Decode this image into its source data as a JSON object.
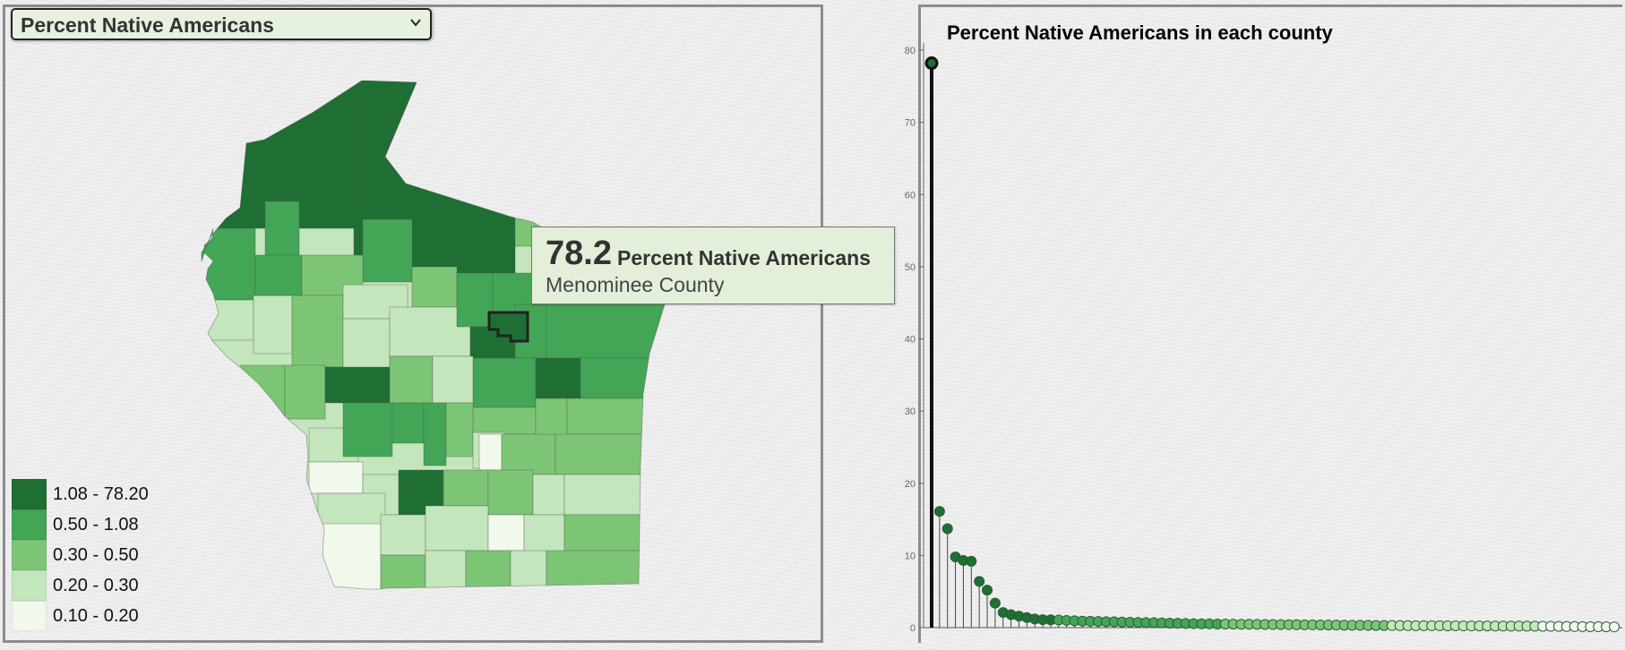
{
  "selector": {
    "selected": "Percent Native Americans"
  },
  "map": {
    "highlighted_county": "Menominee County",
    "classes_colors": [
      "#f1f9ec",
      "#c3e6bc",
      "#7cc575",
      "#43a556",
      "#1f6f35"
    ]
  },
  "legend": {
    "items": [
      {
        "label": "1.08 - 78.20",
        "color": "#1f6f35"
      },
      {
        "label": "0.50 - 1.08",
        "color": "#43a556"
      },
      {
        "label": "0.30 - 0.50",
        "color": "#7cc575"
      },
      {
        "label": "0.20 - 0.30",
        "color": "#c3e6bc"
      },
      {
        "label": "0.10 - 0.20",
        "color": "#f1f9ec"
      }
    ]
  },
  "tooltip": {
    "value": "78.2",
    "metric": "Percent Native Americans",
    "county": "Menominee County"
  },
  "chart_data": {
    "type": "lollipop",
    "title": "Percent Native Americans in each county",
    "xlabel": "",
    "ylabel": "",
    "ylim": [
      0,
      80
    ],
    "yticks": [
      0,
      10,
      20,
      30,
      40,
      50,
      60,
      70,
      80
    ],
    "grid": false,
    "sorted": "descending",
    "values": [
      78.2,
      16.1,
      13.7,
      9.8,
      9.3,
      9.2,
      6.4,
      5.2,
      3.4,
      2.1,
      1.8,
      1.6,
      1.4,
      1.2,
      1.1,
      1.08,
      1.05,
      1.0,
      0.95,
      0.9,
      0.88,
      0.85,
      0.82,
      0.8,
      0.78,
      0.75,
      0.72,
      0.7,
      0.68,
      0.65,
      0.62,
      0.6,
      0.58,
      0.55,
      0.53,
      0.52,
      0.5,
      0.49,
      0.48,
      0.47,
      0.46,
      0.45,
      0.44,
      0.43,
      0.42,
      0.41,
      0.4,
      0.39,
      0.38,
      0.37,
      0.36,
      0.35,
      0.34,
      0.33,
      0.32,
      0.31,
      0.3,
      0.3,
      0.29,
      0.28,
      0.28,
      0.27,
      0.27,
      0.26,
      0.26,
      0.25,
      0.25,
      0.24,
      0.24,
      0.23,
      0.23,
      0.22,
      0.22,
      0.21,
      0.21,
      0.2,
      0.2,
      0.19,
      0.18,
      0.17,
      0.16,
      0.15,
      0.14,
      0.13,
      0.12,
      0.11,
      0.1
    ],
    "class_breaks": [
      0.2,
      0.3,
      0.5,
      1.08
    ],
    "class_colors": [
      "#f1f9ec",
      "#c3e6bc",
      "#7cc575",
      "#43a556",
      "#1f6f35"
    ]
  }
}
